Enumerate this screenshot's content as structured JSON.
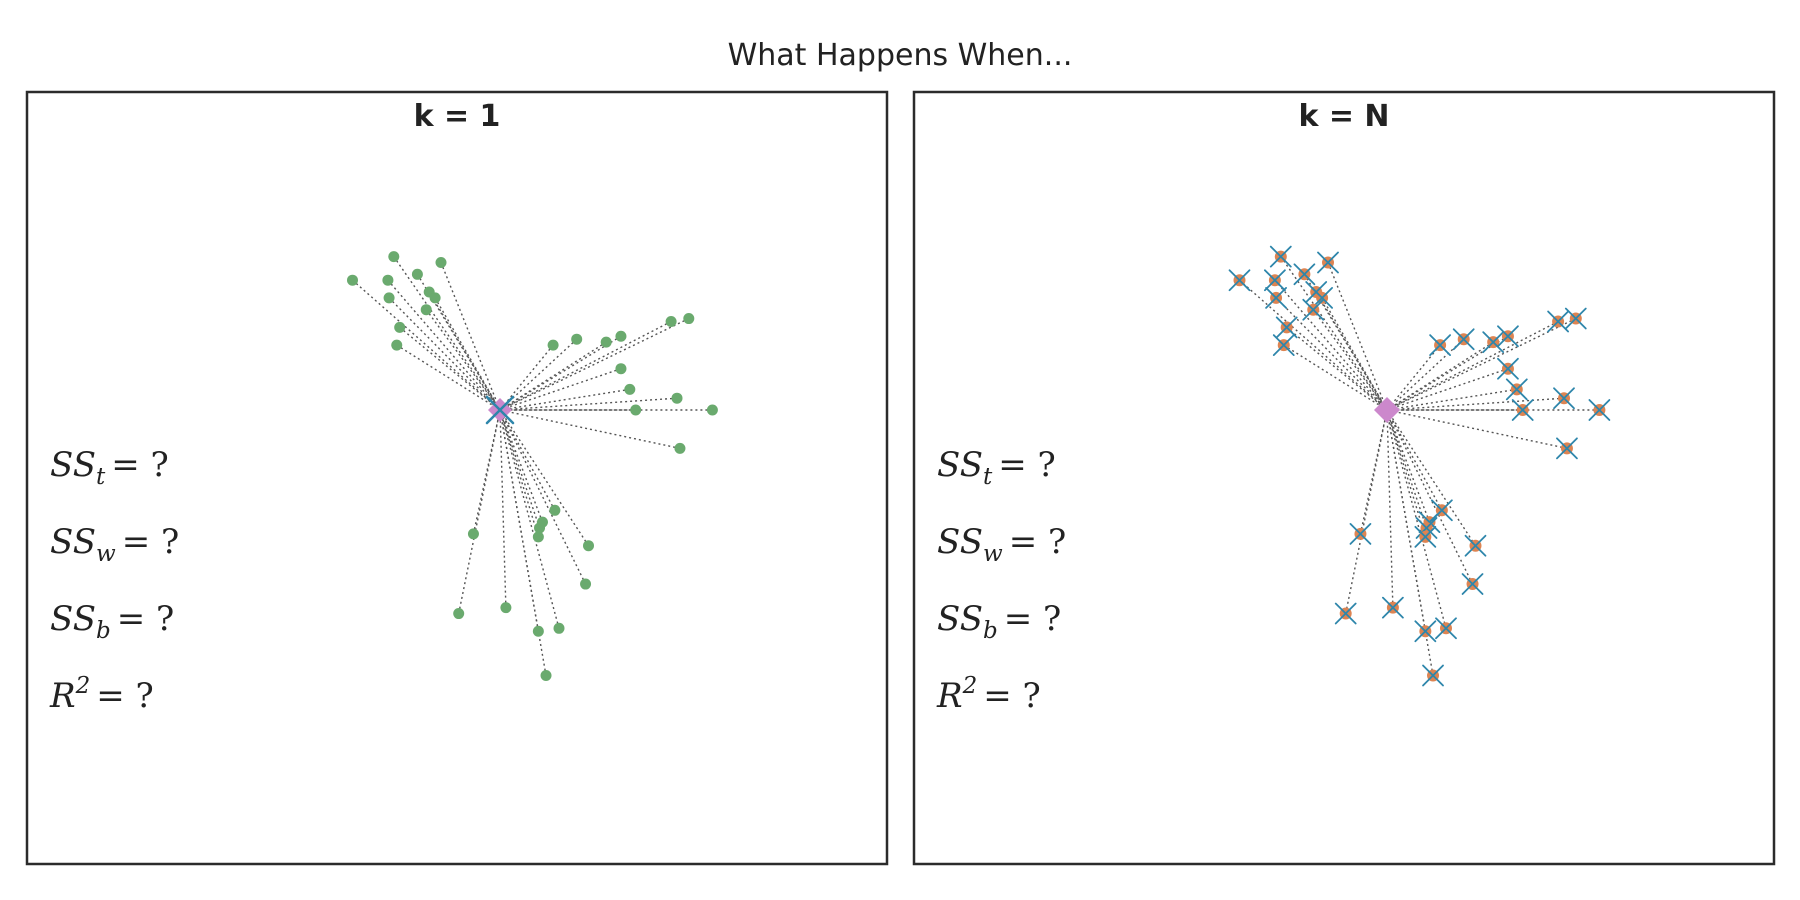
{
  "figure_title": "What Happens When...",
  "colors": {
    "point": "#6aaa6e",
    "grand_mean": "#cc88cc",
    "centroid_cross": "#2e86ab",
    "point_as_centroid": "#dd8452",
    "connector": "#555555",
    "frame": "#2b2b2b"
  },
  "chart_data": [
    {
      "type": "scatter",
      "title": "k = 1",
      "annotations": [
        {
          "id": "sst",
          "base": "SS",
          "sub": "t",
          "sup": "",
          "rest": "= ?"
        },
        {
          "id": "ssw",
          "base": "SS",
          "sub": "w",
          "sup": "",
          "rest": "= ?"
        },
        {
          "id": "ssb",
          "base": "SS",
          "sub": "b",
          "sup": "",
          "rest": "= ?"
        },
        {
          "id": "r2",
          "base": "R",
          "sub": "",
          "sup": "2",
          "rest": "= ?"
        }
      ],
      "grand_mean": [
        0,
        0
      ],
      "centroids": [
        [
          0,
          0
        ]
      ],
      "points": [
        [
          -2.5,
          2.2
        ],
        [
          -1.8,
          2.6
        ],
        [
          -1.9,
          2.2
        ],
        [
          -1.88,
          1.9
        ],
        [
          -1.4,
          2.3
        ],
        [
          -1.2,
          2.0
        ],
        [
          -1.1,
          1.9
        ],
        [
          -1.25,
          1.7
        ],
        [
          -1.7,
          1.4
        ],
        [
          -1.75,
          1.1
        ],
        [
          -1.0,
          2.5
        ],
        [
          0.9,
          1.1
        ],
        [
          1.3,
          1.2
        ],
        [
          1.8,
          1.15
        ],
        [
          2.05,
          1.25
        ],
        [
          2.9,
          1.5
        ],
        [
          3.2,
          1.55
        ],
        [
          2.05,
          0.7
        ],
        [
          2.2,
          0.35
        ],
        [
          3.0,
          0.2
        ],
        [
          2.3,
          0.0
        ],
        [
          3.6,
          0.0
        ],
        [
          3.05,
          -0.65
        ],
        [
          -0.45,
          -2.1
        ],
        [
          0.1,
          -3.35
        ],
        [
          0.72,
          -1.9
        ],
        [
          0.93,
          -1.7
        ],
        [
          0.67,
          -2.0
        ],
        [
          0.65,
          -2.15
        ],
        [
          1.5,
          -2.3
        ],
        [
          1.45,
          -2.95
        ],
        [
          0.65,
          -3.75
        ],
        [
          1.0,
          -3.7
        ],
        [
          0.78,
          -4.5
        ],
        [
          -0.7,
          -3.45
        ]
      ]
    },
    {
      "type": "scatter",
      "title": "k = N",
      "annotations": [
        {
          "id": "sst",
          "base": "SS",
          "sub": "t",
          "sup": "",
          "rest": "= ?"
        },
        {
          "id": "ssw",
          "base": "SS",
          "sub": "w",
          "sup": "",
          "rest": "= ?"
        },
        {
          "id": "ssb",
          "base": "SS",
          "sub": "b",
          "sup": "",
          "rest": "= ?"
        },
        {
          "id": "r2",
          "base": "R",
          "sub": "",
          "sup": "2",
          "rest": "= ?"
        }
      ],
      "grand_mean": [
        0,
        0
      ],
      "centroids": "each point is its own centroid",
      "points": [
        [
          -2.5,
          2.2
        ],
        [
          -1.8,
          2.6
        ],
        [
          -1.9,
          2.2
        ],
        [
          -1.88,
          1.9
        ],
        [
          -1.4,
          2.3
        ],
        [
          -1.2,
          2.0
        ],
        [
          -1.1,
          1.9
        ],
        [
          -1.25,
          1.7
        ],
        [
          -1.7,
          1.4
        ],
        [
          -1.75,
          1.1
        ],
        [
          -1.0,
          2.5
        ],
        [
          0.9,
          1.1
        ],
        [
          1.3,
          1.2
        ],
        [
          1.8,
          1.15
        ],
        [
          2.05,
          1.25
        ],
        [
          2.9,
          1.5
        ],
        [
          3.2,
          1.55
        ],
        [
          2.05,
          0.7
        ],
        [
          2.2,
          0.35
        ],
        [
          3.0,
          0.2
        ],
        [
          2.3,
          0.0
        ],
        [
          3.6,
          0.0
        ],
        [
          3.05,
          -0.65
        ],
        [
          -0.45,
          -2.1
        ],
        [
          0.1,
          -3.35
        ],
        [
          0.72,
          -1.9
        ],
        [
          0.93,
          -1.7
        ],
        [
          0.67,
          -2.0
        ],
        [
          0.65,
          -2.15
        ],
        [
          1.5,
          -2.3
        ],
        [
          1.45,
          -2.95
        ],
        [
          0.65,
          -3.75
        ],
        [
          1.0,
          -3.7
        ],
        [
          0.78,
          -4.5
        ],
        [
          -0.7,
          -3.45
        ]
      ]
    }
  ]
}
